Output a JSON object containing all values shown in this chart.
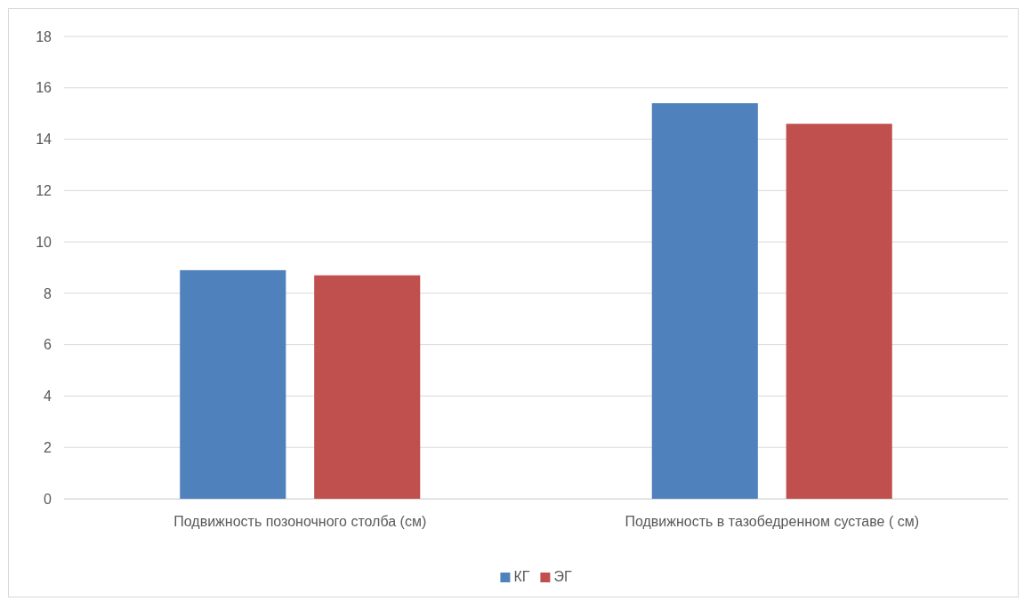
{
  "chart_data": {
    "type": "bar",
    "categories": [
      "Подвижность позоночного столба (см)",
      "Подвижность в тазобедренном суставе ( см)"
    ],
    "series": [
      {
        "name": "КГ",
        "color": "#4f81bd",
        "values": [
          8.9,
          15.4
        ]
      },
      {
        "name": "ЭГ",
        "color": "#c0504d",
        "values": [
          8.7,
          14.6
        ]
      }
    ],
    "ylim": [
      0,
      18
    ],
    "yticks": [
      0,
      2,
      4,
      6,
      8,
      10,
      12,
      14,
      16,
      18
    ],
    "grid": "y",
    "legend": "bottom"
  }
}
